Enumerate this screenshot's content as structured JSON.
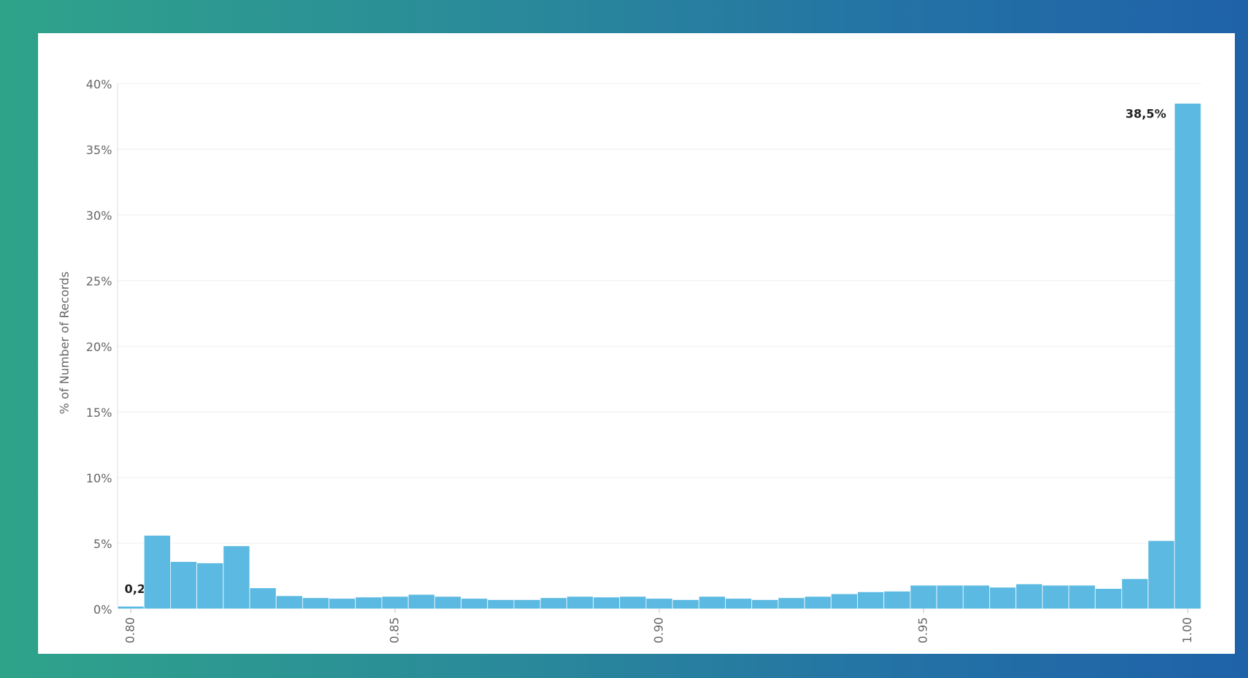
{
  "chart_data": {
    "type": "histogram",
    "y_label": "% of Number of Records",
    "bins": [
      0.7975,
      0.8025,
      0.8075,
      0.8125,
      0.8175,
      0.8225,
      0.8275,
      0.8325,
      0.8375,
      0.8425,
      0.8475,
      0.8525,
      0.8575,
      0.8625,
      0.8675,
      0.8725,
      0.8775,
      0.8825,
      0.8875,
      0.8925,
      0.8975,
      0.9025,
      0.9075,
      0.9125,
      0.9175,
      0.9225,
      0.9275,
      0.9325,
      0.9375,
      0.9425,
      0.9475,
      0.9525,
      0.9575,
      0.9625,
      0.9675,
      0.9725,
      0.9775,
      0.9825,
      0.9875,
      0.9925,
      0.9975,
      1.0025
    ],
    "values": [
      0.2,
      5.6,
      3.6,
      3.5,
      4.8,
      1.6,
      1.0,
      0.85,
      0.8,
      0.9,
      0.95,
      1.1,
      0.95,
      0.8,
      0.7,
      0.7,
      0.85,
      0.95,
      0.9,
      0.95,
      0.8,
      0.7,
      0.95,
      0.8,
      0.7,
      0.85,
      0.95,
      1.15,
      1.3,
      1.35,
      1.8,
      1.8,
      1.8,
      1.65,
      1.9,
      1.8,
      1.8,
      1.55,
      2.3,
      5.2,
      38.5
    ],
    "value_labels": [
      "0,2%",
      null,
      null,
      null,
      null,
      null,
      null,
      null,
      null,
      null,
      null,
      null,
      null,
      null,
      null,
      null,
      null,
      null,
      null,
      null,
      null,
      null,
      null,
      null,
      null,
      null,
      null,
      null,
      null,
      null,
      null,
      null,
      null,
      null,
      null,
      null,
      null,
      null,
      null,
      null,
      "38,5%"
    ],
    "color": "#5cbae2",
    "xlim": [
      0.7975,
      1.0025
    ],
    "xticks": [
      {
        "value": 0.8,
        "label": "0.80"
      },
      {
        "value": 0.85,
        "label": "0.85"
      },
      {
        "value": 0.9,
        "label": "0.90"
      },
      {
        "value": 0.95,
        "label": "0.95"
      },
      {
        "value": 1.0,
        "label": "1.00"
      }
    ],
    "ylim": [
      0,
      40
    ],
    "yticks": [
      {
        "value": 0,
        "label": "0%"
      },
      {
        "value": 5,
        "label": "5%"
      },
      {
        "value": 10,
        "label": "10%"
      },
      {
        "value": 15,
        "label": "15%"
      },
      {
        "value": 20,
        "label": "20%"
      },
      {
        "value": 25,
        "label": "25%"
      },
      {
        "value": 30,
        "label": "30%"
      },
      {
        "value": 35,
        "label": "35%"
      },
      {
        "value": 40,
        "label": "40%"
      }
    ],
    "grid": true
  }
}
